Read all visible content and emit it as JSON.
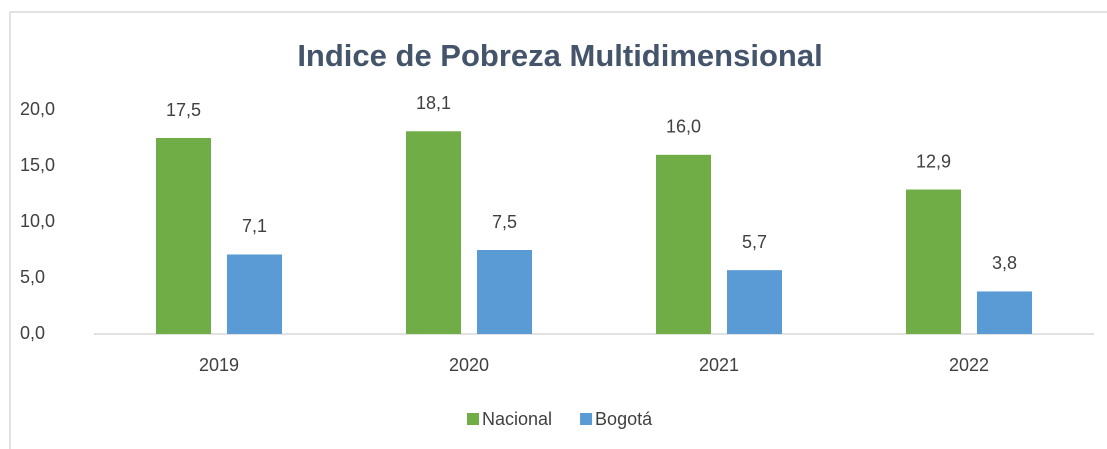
{
  "chart_data": {
    "type": "bar",
    "title": "Indice  de Pobreza Multidimensional",
    "categories": [
      "2019",
      "2020",
      "2021",
      "2022"
    ],
    "series": [
      {
        "name": "Nacional",
        "color": "#70ad47",
        "values": [
          17.5,
          18.1,
          16.0,
          12.9
        ],
        "value_labels": [
          "17,5",
          "18,1",
          "16,0",
          "12,9"
        ]
      },
      {
        "name": "Bogotá",
        "color": "#5b9bd5",
        "values": [
          7.1,
          7.5,
          5.7,
          3.8
        ],
        "value_labels": [
          "7,1",
          "7,5",
          "5,7",
          "3,8"
        ]
      }
    ],
    "ylim": [
      0,
      20
    ],
    "yticks": [
      {
        "value": 0,
        "label": "0,0"
      },
      {
        "value": 5,
        "label": "5,0"
      },
      {
        "value": 10,
        "label": "10,0"
      },
      {
        "value": 15,
        "label": "15,0"
      },
      {
        "value": 20,
        "label": "20,0"
      }
    ],
    "grid": false,
    "legend": "bottom"
  }
}
